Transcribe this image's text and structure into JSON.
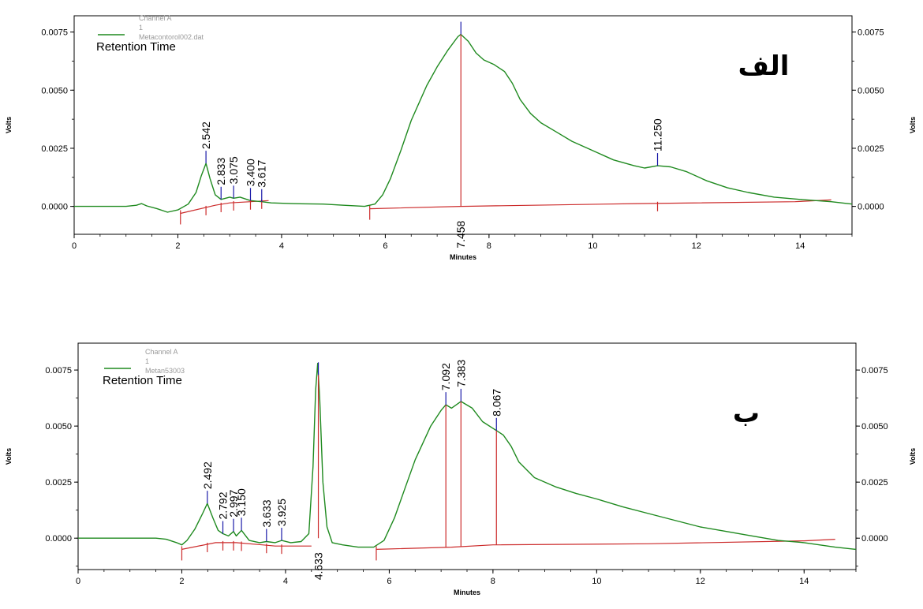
{
  "colors": {
    "trace": "#1f8a1f",
    "baseline": "#cc2b2b",
    "marker": "#1a1aa8",
    "axis": "#000000"
  },
  "chart_data": [
    {
      "type": "line",
      "panel_label": "الف",
      "legend": {
        "channel": "Channel A",
        "index": "1",
        "file": "Metacontorol002.dat",
        "method": "Retention Time"
      },
      "xlabel": "Minutes",
      "ylabel": "Volts",
      "xlim": [
        0,
        15
      ],
      "ylim": [
        -0.0012,
        0.0082
      ],
      "x_ticks": [
        "0",
        "2",
        "4",
        "6",
        "8",
        "10",
        "12",
        "14"
      ],
      "y_ticks": [
        "0.0000",
        "0.0025",
        "0.0050",
        "0.0075"
      ],
      "right_y_ticks": [
        "0.0000",
        "0.0025",
        "0.0050",
        "0.0075"
      ],
      "series": [
        {
          "x": [
            0,
            1.0,
            1.2,
            1.3,
            1.4,
            1.6,
            1.8,
            2.0,
            2.2,
            2.35,
            2.45,
            2.542,
            2.62,
            2.72,
            2.833,
            3.0,
            3.075,
            3.2,
            3.4,
            3.617,
            3.8,
            4.2,
            4.8,
            5.2,
            5.6,
            5.8,
            5.95,
            6.1,
            6.3,
            6.5,
            6.8,
            7.0,
            7.2,
            7.4,
            7.458,
            7.6,
            7.75,
            7.9,
            8.1,
            8.3,
            8.45,
            8.6,
            8.8,
            9.0,
            9.3,
            9.6,
            10.0,
            10.4,
            10.8,
            11.0,
            11.25,
            11.5,
            11.8,
            12.2,
            12.6,
            13.0,
            13.5,
            14.0,
            14.6,
            15.0
          ],
          "y": [
            0,
            0,
            5e-05,
            0.00012,
            2e-05,
            -0.0001,
            -0.00025,
            -0.00015,
            0.0001,
            0.0006,
            0.0013,
            0.00185,
            0.0012,
            0.0005,
            0.0003,
            0.0004,
            0.00035,
            0.0004,
            0.00025,
            0.0002,
            0.00015,
            0.00012,
            0.0001,
            5e-05,
            0.0,
            0.0001,
            0.0005,
            0.0012,
            0.0024,
            0.0037,
            0.0052,
            0.006,
            0.0067,
            0.0073,
            0.0074,
            0.0071,
            0.0066,
            0.0063,
            0.0061,
            0.0058,
            0.0053,
            0.0046,
            0.004,
            0.0036,
            0.0032,
            0.0028,
            0.0024,
            0.002,
            0.00175,
            0.00165,
            0.00175,
            0.0017,
            0.0015,
            0.0011,
            0.0008,
            0.0006,
            0.0004,
            0.0003,
            0.0002,
            0.0001
          ]
        }
      ],
      "baselines": [
        {
          "x": [
            2.05,
            2.72,
            3.0,
            3.4,
            3.75
          ],
          "y": [
            -0.0003,
            5e-05,
            0.00015,
            0.0002,
            0.00025
          ]
        },
        {
          "x": [
            5.7,
            7.458,
            10.85,
            13.9,
            14.6
          ],
          "y": [
            -0.0001,
            0.0,
            0.00012,
            0.0002,
            0.00028
          ]
        }
      ],
      "peaks": [
        {
          "rt": "2.542",
          "x": 2.542
        },
        {
          "rt": "2.833",
          "x": 2.833
        },
        {
          "rt": "3.075",
          "x": 3.075
        },
        {
          "rt": "3.400",
          "x": 3.4
        },
        {
          "rt": "3.617",
          "x": 3.617
        },
        {
          "rt": "7.458",
          "x": 7.458
        },
        {
          "rt": "11.250",
          "x": 11.25
        }
      ]
    },
    {
      "type": "line",
      "panel_label": "ب",
      "legend": {
        "channel": "Channel A",
        "index": "1",
        "file": "Metan53003",
        "method": "Retention Time"
      },
      "xlabel": "Minutes",
      "ylabel": "Volts",
      "xlim": [
        0,
        15
      ],
      "ylim": [
        -0.0014,
        0.0087
      ],
      "x_ticks": [
        "0",
        "2",
        "4",
        "6",
        "8",
        "10",
        "12",
        "14"
      ],
      "y_ticks": [
        "0.0000",
        "0.0025",
        "0.0050",
        "0.0075"
      ],
      "right_y_ticks": [
        "0.0000",
        "0.0025",
        "0.0050",
        "0.0075"
      ],
      "series": [
        {
          "x": [
            0,
            1.5,
            1.7,
            1.9,
            2.0,
            2.1,
            2.25,
            2.4,
            2.492,
            2.6,
            2.7,
            2.792,
            2.9,
            2.997,
            3.05,
            3.15,
            3.3,
            3.5,
            3.633,
            3.8,
            3.925,
            4.1,
            4.3,
            4.45,
            4.53,
            4.58,
            4.62,
            4.66,
            4.72,
            4.8,
            4.9,
            5.1,
            5.4,
            5.7,
            5.9,
            6.1,
            6.3,
            6.5,
            6.8,
            7.0,
            7.092,
            7.2,
            7.383,
            7.6,
            7.8,
            8.067,
            8.2,
            8.35,
            8.5,
            8.8,
            9.2,
            9.6,
            10.0,
            10.5,
            11.0,
            11.5,
            12.0,
            12.5,
            13.0,
            13.5,
            14.0,
            14.6,
            15.0
          ],
          "y": [
            0,
            0,
            -5e-05,
            -0.0002,
            -0.0003,
            -0.0001,
            0.0004,
            0.0011,
            0.00155,
            0.0009,
            0.00035,
            0.0002,
            0.0001,
            0.0003,
            0.0001,
            0.00035,
            -0.0001,
            -0.0002,
            -0.00015,
            -0.0002,
            -0.0001,
            -0.0002,
            -0.00015,
            0.0002,
            0.0032,
            0.0066,
            0.0078,
            0.0062,
            0.0025,
            0.0005,
            -0.0002,
            -0.0003,
            -0.0004,
            -0.0004,
            -0.0001,
            0.0009,
            0.0022,
            0.0035,
            0.005,
            0.0057,
            0.00595,
            0.0058,
            0.0061,
            0.0058,
            0.0052,
            0.0048,
            0.0046,
            0.0041,
            0.0034,
            0.0027,
            0.0023,
            0.002,
            0.00175,
            0.0014,
            0.0011,
            0.0008,
            0.0005,
            0.0003,
            0.0001,
            -0.0001,
            -0.0002,
            -0.0004,
            -0.0005
          ]
        }
      ],
      "baselines": [
        {
          "x": [
            2.0,
            2.65,
            3.05,
            3.55,
            3.8,
            4.2,
            4.5
          ],
          "y": [
            -0.0005,
            -0.0002,
            -0.0002,
            -0.0003,
            -0.00035,
            -0.00035,
            -0.00035
          ]
        },
        {
          "x": [
            5.75,
            7.2,
            8.0,
            11.0,
            14.0,
            14.6
          ],
          "y": [
            -0.0005,
            -0.0004,
            -0.0003,
            -0.00025,
            -0.00012,
            -5e-05
          ]
        }
      ],
      "peaks": [
        {
          "rt": "2.492",
          "x": 2.492
        },
        {
          "rt": "2.792",
          "x": 2.792
        },
        {
          "rt": "2.997",
          "x": 2.997
        },
        {
          "rt": "3.150",
          "x": 3.15
        },
        {
          "rt": "3.633",
          "x": 3.633
        },
        {
          "rt": "3.925",
          "x": 3.925
        },
        {
          "rt": "4.633",
          "x": 4.633
        },
        {
          "rt": "7.092",
          "x": 7.092
        },
        {
          "rt": "7.383",
          "x": 7.383
        },
        {
          "rt": "8.067",
          "x": 8.067
        }
      ]
    }
  ]
}
